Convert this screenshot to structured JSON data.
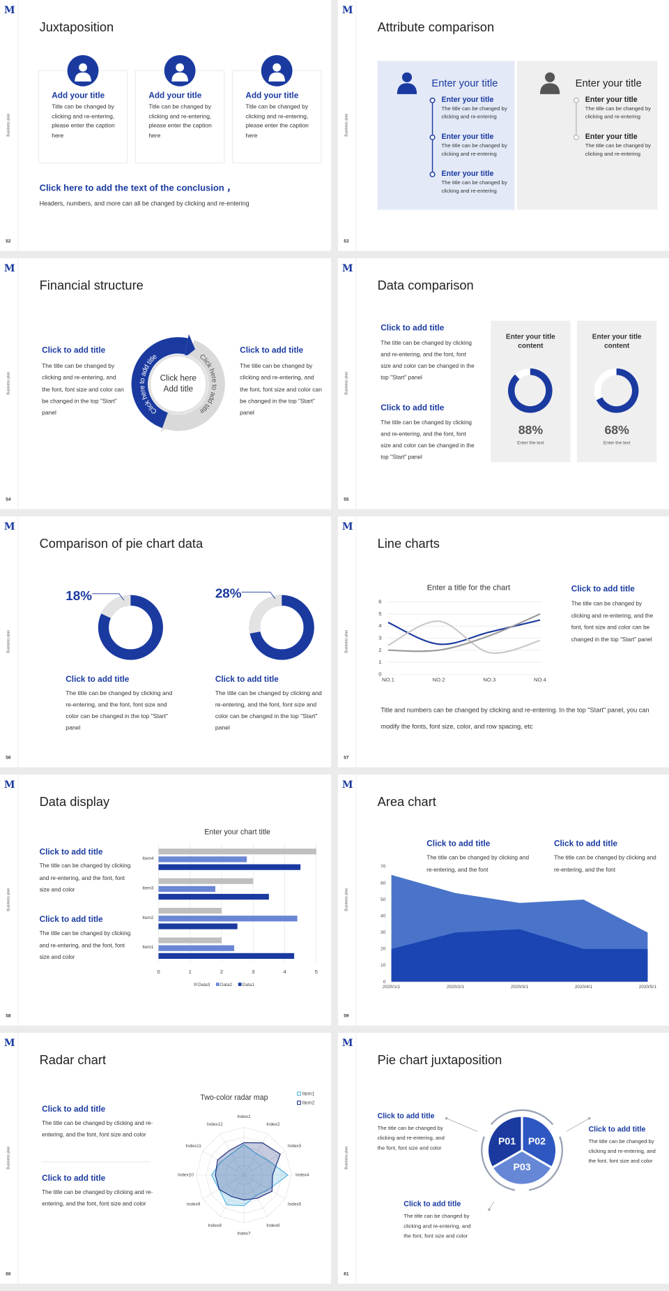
{
  "logo": "M",
  "slides": [
    {
      "number": 52,
      "side_label": "Business plan",
      "title": "Juxtaposition",
      "cards": [
        {
          "title": "Add your title",
          "text": "Title can be changed by clicking and re-entering, please enter the caption here"
        },
        {
          "title": "Add your title",
          "text": "Title can be changed by clicking and re-entering, please enter the caption here"
        },
        {
          "title": "Add your title",
          "text": "Title can be changed by clicking and re-entering, please enter the caption here"
        }
      ],
      "conclusion": {
        "title": "Click here to add the text of the conclusion ，",
        "text": "Headers, numbers, and more can all be changed by clicking and re-entering"
      }
    },
    {
      "number": 53,
      "side_label": "Business plan",
      "title": "Attribute comparison",
      "panels": [
        {
          "title": "Enter your title",
          "items": [
            {
              "title": "Enter your title",
              "text": "The title can be changed by clicking and re-entering"
            },
            {
              "title": "Enter your title",
              "text": "The title can be changed by clicking and re-entering"
            },
            {
              "title": "Enter your title",
              "text": "The title can be changed by clicking and re-entering"
            }
          ]
        },
        {
          "title": "Enter your title",
          "items": [
            {
              "title": "Enter your title",
              "text": "The title can be changed by clicking and re-entering"
            },
            {
              "title": "Enter your title",
              "text": "The title can be changed by clicking and re-entering"
            }
          ]
        }
      ]
    },
    {
      "number": 54,
      "side_label": "Business plan",
      "title": "Financial structure",
      "blocks": [
        {
          "title": "Click to add title",
          "text": "The title can be changed by clicking and re-entering, and the font, font size and color can be changed in the top \"Start\" panel"
        },
        {
          "title": "Click to add title",
          "text": "The title can be changed by clicking and re-entering, and the font, font size and color can be changed in the top \"Start\" panel"
        }
      ],
      "center": "Click here Add title",
      "arc_labels": [
        "Click here to add title",
        "Click here to add title"
      ]
    },
    {
      "number": 55,
      "side_label": "Business plan",
      "title": "Data comparison",
      "blocks": [
        {
          "title": "Click to add title",
          "text": "The title can be changed by clicking and re-entering, and the font, font size and color can be changed in the top \"Start\" panel"
        },
        {
          "title": "Click to add title",
          "text": "The title can be changed by clicking and re-entering, and the font, font size and color can be changed in the top \"Start\" panel"
        }
      ],
      "cards": [
        {
          "title": "Enter your title content",
          "value": 88,
          "value_label": "88%",
          "caption": "Enter the text"
        },
        {
          "title": "Enter your title content",
          "value": 68,
          "value_label": "68%",
          "caption": "Enter the text"
        }
      ]
    },
    {
      "number": 56,
      "side_label": "Business plan",
      "title": "Comparison of pie chart data",
      "donuts": [
        {
          "value": 18,
          "value_label": "18%",
          "title": "Click to add title",
          "text": "The title can be changed by clicking and re-entering, and the font, font size and color can be changed in the top \"Start\" panel"
        },
        {
          "value": 28,
          "value_label": "28%",
          "title": "Click to add title",
          "text": "The title can be changed by clicking and re-entering, and the font, font size and color can be changed in the top \"Start\" panel"
        }
      ]
    },
    {
      "number": 57,
      "side_label": "Business plan",
      "title": "Line charts",
      "chart": {
        "type": "line",
        "title": "Enter a title for the chart",
        "categories": [
          "NO.1",
          "NO.2",
          "NO.3",
          "NO.4"
        ],
        "series": [
          {
            "color": "#1a3aa0",
            "values": [
              4.3,
              2.5,
              3.5,
              4.5
            ]
          },
          {
            "color": "#c8c8c8",
            "values": [
              2.4,
              4.4,
              1.8,
              2.8
            ]
          },
          {
            "color": "#9a9a9a",
            "values": [
              2,
              2,
              3.2,
              5
            ]
          }
        ],
        "ylim": [
          0,
          6
        ],
        "yticks": [
          0,
          1,
          2,
          3,
          4,
          5,
          6
        ],
        "grid": true,
        "smooth": true
      },
      "block": {
        "title": "Click to add title",
        "text": "The title can be changed by clicking and re-entering, and the font, font size and color can be changed in the top \"Start\" panel"
      },
      "note": "Title and numbers can be changed by clicking and re-entering. In the top \"Start\" panel, you can modify the fonts, font size, color, and row spacing, etc"
    },
    {
      "number": 58,
      "side_label": "Business plan",
      "title": "Data display",
      "blocks": [
        {
          "title": "Click to add title",
          "text": "The title can be changed by clicking and re-entering, and the font, font size and color"
        },
        {
          "title": "Click to add title",
          "text": "The title can be changed by clicking and re-entering, and the font, font size and color"
        }
      ],
      "chart": {
        "type": "bar",
        "orientation": "horizontal",
        "title": "Enter your chart title",
        "categories": [
          "Item1",
          "Item2",
          "Item3",
          "Item4"
        ],
        "series": [
          {
            "name": "Data3",
            "color": "#bfbfbf",
            "values": [
              2,
              2,
              3,
              5
            ]
          },
          {
            "name": "Data2",
            "color": "#6a86d4",
            "values": [
              2.4,
              4.4,
              1.8,
              2.8
            ]
          },
          {
            "name": "Data1",
            "color": "#1a3aa0",
            "values": [
              4.3,
              2.5,
              3.5,
              4.5
            ]
          }
        ],
        "xlim": [
          0,
          5
        ],
        "xticks": [
          0,
          1,
          2,
          3,
          4,
          5
        ],
        "grid": true,
        "legend": "bottom"
      }
    },
    {
      "number": 59,
      "side_label": "Business plan",
      "title": "Area chart",
      "blocks": [
        {
          "title": "Click to add title",
          "text": "The title can be changed by clicking and re-entering, and the font"
        },
        {
          "title": "Click to add title",
          "text": "The title can be changed by clicking and re-entering, and the font"
        }
      ],
      "chart": {
        "type": "area",
        "categories": [
          "2020/1/1",
          "2020/2/1",
          "2020/3/1",
          "2020/4/1",
          "2020/5/1"
        ],
        "series": [
          {
            "color": "#4a74c9",
            "values": [
              65,
              54,
              48,
              50,
              30
            ]
          },
          {
            "color": "#1a45b3",
            "values": [
              20,
              30,
              32,
              20,
              20
            ]
          }
        ],
        "ylim": [
          0,
          70
        ],
        "yticks": [
          0,
          10,
          20,
          30,
          40,
          50,
          60,
          70
        ]
      }
    },
    {
      "number": 60,
      "side_label": "Business plan",
      "title": "Radar chart",
      "blocks": [
        {
          "title": "Click to add title",
          "text": "The title can be changed by clicking and re-entering, and the font, font size and color"
        },
        {
          "title": "Click to add title",
          "text": "The title can be changed by clicking and re-entering, and the font, font size and color"
        }
      ],
      "chart": {
        "type": "radar",
        "title": "Two-color radar map",
        "categories": [
          "Index1",
          "Index2",
          "Index3",
          "Index4",
          "Index5",
          "Index6",
          "Index7",
          "Index8",
          "Index9",
          "Index10",
          "Index11",
          "Index12"
        ],
        "series": [
          {
            "name": "Item1",
            "color": "#4fb3e0",
            "values": [
              3.2,
              2.6,
              3.0,
              4.6,
              3.0,
              2.5,
              3.2,
              3.6,
              3.0,
              3.4,
              2.8,
              2.6
            ]
          },
          {
            "name": "Item2",
            "color": "#1a2f80",
            "values": [
              3.4,
              3.9,
              4.4,
              3.0,
              3.4,
              2.8,
              2.6,
              2.6,
              3.0,
              3.0,
              3.2,
              3.0
            ]
          }
        ],
        "rlim": [
          0,
          5
        ],
        "legend": "top-right"
      }
    },
    {
      "number": 61,
      "side_label": "Business plan",
      "title": "Pie chart juxtaposition",
      "segments": [
        "P01",
        "P02",
        "P03"
      ],
      "blocks": [
        {
          "title": "Click to add title",
          "text": "The title can be changed by clicking and re-entering, and the font, font size and color"
        },
        {
          "title": "Click to add title",
          "text": "The title can be changed by clicking and re-entering, and the font, font size and color"
        },
        {
          "title": "Click to add title",
          "text": "The title can be changed by clicking and re-entering, and the font, font size and color"
        }
      ]
    }
  ]
}
